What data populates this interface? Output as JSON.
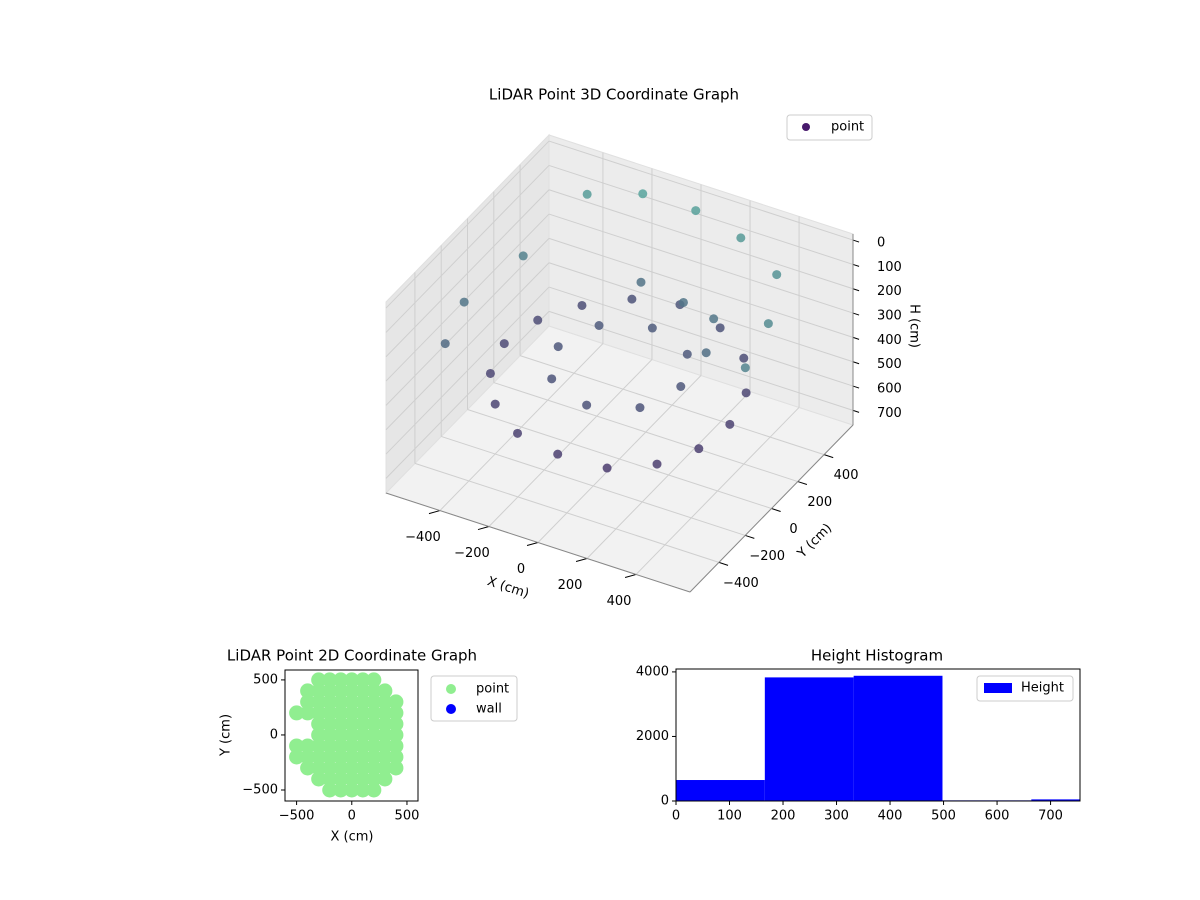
{
  "chart_data": [
    {
      "type": "scatter3d",
      "title": "LiDAR Point 3D Coordinate Graph",
      "xlabel": "X (cm)",
      "ylabel": "Y (cm)",
      "zlabel": "H (cm)",
      "xlim": [
        -620,
        620
      ],
      "ylim": [
        -620,
        620
      ],
      "zlim": [
        -25,
        760
      ],
      "z_inverted": true,
      "xticks": [
        {
          "value": -400,
          "label": "−400"
        },
        {
          "value": -200,
          "label": "−200"
        },
        0,
        200,
        400
      ],
      "yticks": [
        {
          "value": -400,
          "label": "−400"
        },
        {
          "value": -200,
          "label": "−200"
        },
        0,
        200,
        400
      ],
      "zticks": [
        0,
        100,
        200,
        300,
        400,
        500,
        600,
        700
      ],
      "colormap": [
        "#5ab4a4",
        "#440154"
      ],
      "legend": "upper right",
      "series": [
        {
          "name": "point",
          "color": "#481a6c",
          "x": [
            450,
            420,
            330,
            180,
            0,
            -180,
            -330,
            -430,
            -470,
            -430,
            -330,
            -180,
            0,
            180,
            330,
            420,
            250,
            180,
            0,
            -180,
            -250,
            -180,
            0,
            180,
            100,
            -100,
            250,
            300,
            -400,
            -200,
            0,
            200,
            400,
            500,
            540,
            -550,
            -580,
            -500
          ],
          "y": [
            0,
            -180,
            -330,
            -430,
            -470,
            -440,
            -330,
            -180,
            0,
            180,
            330,
            430,
            460,
            430,
            330,
            180,
            0,
            -180,
            -250,
            -180,
            0,
            180,
            250,
            180,
            300,
            350,
            250,
            100,
            500,
            550,
            580,
            550,
            450,
            200,
            -50,
            -300,
            -100,
            200
          ],
          "z": [
            470,
            480,
            490,
            500,
            480,
            470,
            460,
            450,
            440,
            430,
            420,
            400,
            380,
            400,
            420,
            450,
            380,
            390,
            400,
            390,
            380,
            370,
            360,
            370,
            250,
            260,
            240,
            280,
            80,
            40,
            60,
            90,
            120,
            150,
            180,
            300,
            250,
            200
          ]
        }
      ]
    },
    {
      "type": "scatter",
      "title": "LiDAR Point 2D Coordinate Graph",
      "xlabel": "X (cm)",
      "ylabel": "Y (cm)",
      "xlim": [
        -605,
        600
      ],
      "ylim": [
        -600,
        590
      ],
      "xticks": [
        {
          "value": -500,
          "label": "−500"
        },
        0,
        500
      ],
      "yticks": [
        {
          "value": -500,
          "label": "−500"
        },
        0,
        500
      ],
      "legend": "outside right",
      "series": [
        {
          "name": "point",
          "color": "#90ee90",
          "x": [
            -300,
            -200,
            -100,
            0,
            100,
            200,
            -400,
            -300,
            -200,
            -100,
            0,
            100,
            200,
            300,
            -400,
            -300,
            -200,
            -100,
            0,
            100,
            200,
            300,
            400,
            -500,
            -400,
            -300,
            -200,
            -100,
            0,
            100,
            200,
            300,
            400,
            -300,
            -200,
            -100,
            0,
            100,
            200,
            300,
            400,
            -300,
            -200,
            -100,
            0,
            100,
            200,
            300,
            400,
            -500,
            -400,
            -300,
            -200,
            -100,
            0,
            100,
            200,
            300,
            400,
            -500,
            -400,
            -300,
            -200,
            -100,
            0,
            100,
            200,
            300,
            400,
            -400,
            -300,
            -200,
            -100,
            0,
            100,
            200,
            300,
            400,
            -300,
            -200,
            -100,
            0,
            100,
            200,
            300,
            -200,
            -100,
            0,
            100,
            200
          ],
          "y": [
            500,
            500,
            500,
            500,
            500,
            500,
            400,
            400,
            400,
            400,
            400,
            400,
            400,
            400,
            300,
            300,
            300,
            300,
            300,
            300,
            300,
            300,
            300,
            200,
            200,
            200,
            200,
            200,
            200,
            200,
            200,
            200,
            200,
            100,
            100,
            100,
            100,
            100,
            100,
            100,
            100,
            0,
            0,
            0,
            0,
            0,
            0,
            0,
            0,
            -100,
            -100,
            -100,
            -100,
            -100,
            -100,
            -100,
            -100,
            -100,
            -100,
            -200,
            -200,
            -200,
            -200,
            -200,
            -200,
            -200,
            -200,
            -200,
            -200,
            -300,
            -300,
            -300,
            -300,
            -300,
            -300,
            -300,
            -300,
            -300,
            -400,
            -400,
            -400,
            -400,
            -400,
            -400,
            -400,
            -500,
            -500,
            -500,
            -500,
            -500
          ]
        },
        {
          "name": "wall",
          "color": "#0000ff",
          "x": [],
          "y": []
        }
      ]
    },
    {
      "type": "histogram",
      "title": "Height Histogram",
      "xlim": [
        0,
        755
      ],
      "ylim": [
        0,
        4090
      ],
      "xticks": [
        0,
        100,
        200,
        300,
        400,
        500,
        600,
        700
      ],
      "yticks": [
        0,
        2000,
        4000
      ],
      "legend": "upper right",
      "bins": [
        0,
        166,
        332,
        498,
        664,
        830
      ],
      "series": [
        {
          "name": "Height",
          "color": "#0000ff",
          "values": [
            650,
            3830,
            3880,
            20,
            50
          ]
        }
      ]
    }
  ]
}
